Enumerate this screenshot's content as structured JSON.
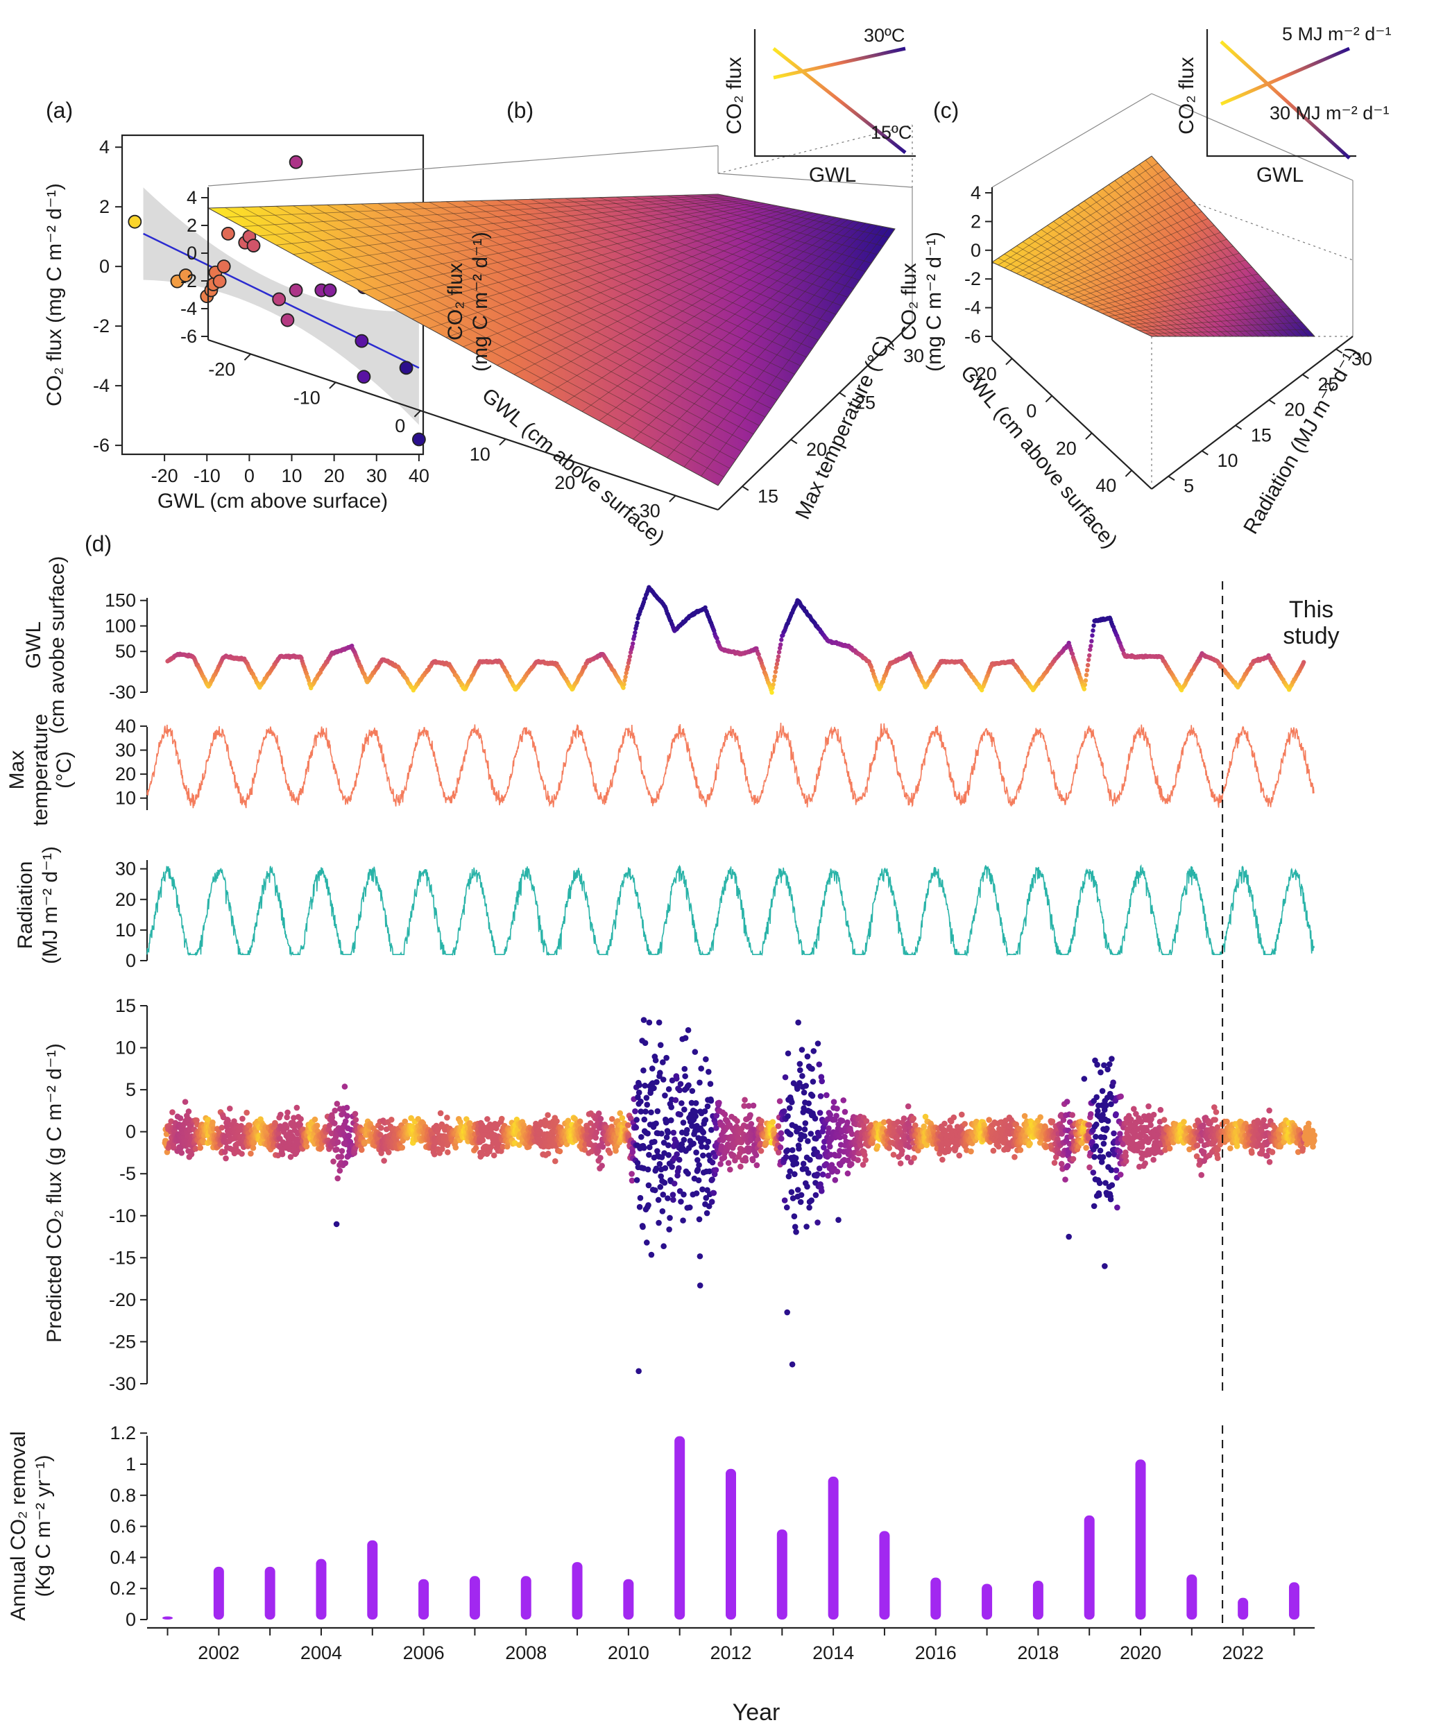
{
  "panel_labels": {
    "a": "(a)",
    "b": "(b)",
    "c": "(c)",
    "d": "(d)"
  },
  "panel_a": {
    "xlabel": "GWL (cm above surface)",
    "ylabel": "CO₂ flux (mg C m⁻² d⁻¹)",
    "xticks": [
      "-20",
      "-10",
      "0",
      "10",
      "20",
      "30",
      "40"
    ],
    "yticks": [
      "4",
      "2",
      "0",
      "-2",
      "-4",
      "-6"
    ]
  },
  "panel_b": {
    "zlabel_1": "CO₂ flux",
    "zlabel_2": "(mg C m⁻² d⁻¹)",
    "xlabel": "GWL (cm above surface)",
    "ylabel": "Max temperature (°C)",
    "zticks": [
      "4",
      "2",
      "0",
      "-2",
      "-4",
      "-6"
    ],
    "xticks": [
      "-20",
      "-10",
      "0",
      "10",
      "20",
      "30"
    ],
    "yticks": [
      "15",
      "20",
      "25",
      "30"
    ],
    "inset": {
      "ylabel": "CO₂ flux",
      "xlabel": "GWL",
      "line_high": "30ºC",
      "line_low": "15ºC"
    }
  },
  "panel_c": {
    "zlabel_1": "CO₂ flux",
    "zlabel_2": "(mg C m⁻² d⁻¹)",
    "xlabel": "GWL (cm above surface)",
    "ylabel": "Radiation (MJ m⁻² d⁻¹)",
    "zticks": [
      "4",
      "2",
      "0",
      "-2",
      "-4",
      "-6"
    ],
    "xticks": [
      "-20",
      "0",
      "20",
      "40"
    ],
    "yticks": [
      "5",
      "10",
      "15",
      "20",
      "25",
      "30"
    ],
    "inset": {
      "ylabel": "CO₂ flux",
      "xlabel": "GWL",
      "line_low_rad": "5 MJ m⁻² d⁻¹",
      "line_high_rad": "30 MJ m⁻² d⁻¹"
    }
  },
  "panel_d": {
    "gwl_label_1": "GWL",
    "gwl_label_2": "(cm avobe surface)",
    "gwl_ticks": [
      "150",
      "100",
      "50",
      "-30"
    ],
    "temp_label_1": "Max",
    "temp_label_2": "temperature",
    "temp_label_3": "(°C)",
    "temp_ticks": [
      "40",
      "30",
      "20",
      "10"
    ],
    "rad_label_1": "Radiation",
    "rad_label_2": "(MJ m⁻² d⁻¹)",
    "rad_ticks": [
      "30",
      "20",
      "10",
      "0"
    ],
    "flux_label": "Predicted CO₂ flux (g C m⁻² d⁻¹)",
    "flux_ticks": [
      "15",
      "10",
      "5",
      "0",
      "-5",
      "-10",
      "-15",
      "-20",
      "-25",
      "-30"
    ],
    "annual_label_1": "Annual CO₂ removal",
    "annual_label_2": "(Kg C m⁻² yr⁻¹)",
    "annual_ticks": [
      "1.2",
      "1",
      "0.8",
      "0.6",
      "0.4",
      "0.2",
      "0"
    ],
    "year_ticks": [
      "2002",
      "2004",
      "2006",
      "2008",
      "2010",
      "2012",
      "2014",
      "2016",
      "2018",
      "2020",
      "2022"
    ],
    "xlabel": "Year",
    "this_study_1": "This",
    "this_study_2": "study"
  },
  "colors": {
    "palette": [
      "#fde725",
      "#f5a541",
      "#e8744d",
      "#c94a72",
      "#9b2795",
      "#5c13a3",
      "#2a0f8c"
    ],
    "fit_line": "#2b2bd0",
    "temperature": "#f47c5c",
    "radiation": "#29b3a8",
    "annual_bar": "#a228f0"
  },
  "chart_data": [
    {
      "id": "a",
      "type": "scatter",
      "xlabel": "GWL (cm above surface)",
      "ylabel": "CO₂ flux (mg C m⁻² d⁻¹)",
      "xlim": [
        -30,
        41
      ],
      "ylim": [
        -6.3,
        4.4
      ],
      "points": [
        {
          "x": -27,
          "y": 1.5
        },
        {
          "x": -17,
          "y": -0.5
        },
        {
          "x": -15,
          "y": -0.3
        },
        {
          "x": -10,
          "y": -1.0
        },
        {
          "x": -9,
          "y": -0.8
        },
        {
          "x": -8.5,
          "y": -0.6
        },
        {
          "x": -8,
          "y": -0.2
        },
        {
          "x": -7,
          "y": -0.5
        },
        {
          "x": -6,
          "y": 0.0
        },
        {
          "x": -5,
          "y": 1.1
        },
        {
          "x": -1,
          "y": 0.8
        },
        {
          "x": -1,
          "y": 1.7
        },
        {
          "x": 0,
          "y": 1.0
        },
        {
          "x": 1,
          "y": 0.7
        },
        {
          "x": 7,
          "y": -1.1
        },
        {
          "x": 9,
          "y": -1.8
        },
        {
          "x": 11,
          "y": 3.5
        },
        {
          "x": 11,
          "y": -0.8
        },
        {
          "x": 17,
          "y": -0.8
        },
        {
          "x": 19,
          "y": -0.8
        },
        {
          "x": 26.5,
          "y": -2.5
        },
        {
          "x": 27,
          "y": -0.7
        },
        {
          "x": 27,
          "y": -3.7
        },
        {
          "x": 37,
          "y": -3.4
        },
        {
          "x": 40,
          "y": -5.8
        }
      ],
      "fit": {
        "x": [
          -25,
          40
        ],
        "y": [
          1.1,
          -3.4
        ]
      }
    },
    {
      "id": "b",
      "type": "surface",
      "x_range": [
        -25,
        30
      ],
      "y_range": [
        12,
        35
      ],
      "z_range": [
        -6.5,
        4
      ],
      "corners": {
        "xmin_ymin": 3.1,
        "xmin_ymax": 3.3,
        "xmax_ymax": 2.3,
        "xmax_ymin": -6.8
      },
      "inset": {
        "type": "line",
        "series": [
          {
            "name": "30ºC",
            "trend": "increasing"
          },
          {
            "name": "15ºC",
            "trend": "decreasing"
          }
        ]
      }
    },
    {
      "id": "c",
      "type": "surface",
      "x_range": [
        -25,
        40
      ],
      "y_range": [
        1,
        30
      ],
      "z_range": [
        -6.5,
        4.5
      ],
      "corners": {
        "xmin_ymin": 0.2,
        "xmin_ymax": 4.2,
        "xmax_ymax": -6.4,
        "xmax_ymin": -6.5
      },
      "inset": {
        "type": "line",
        "series": [
          {
            "name": "5 MJ m⁻² d⁻¹",
            "trend": "increasing"
          },
          {
            "name": "30 MJ m⁻² d⁻¹",
            "trend": "decreasing"
          }
        ]
      }
    },
    {
      "id": "d-gwl",
      "type": "scatter",
      "x_range": [
        2001,
        2023.5
      ],
      "ylim": [
        -30,
        185
      ],
      "series_points": [
        [
          2001.0,
          30
        ],
        [
          2001.2,
          45
        ],
        [
          2001.5,
          40
        ],
        [
          2001.8,
          -20
        ],
        [
          2002.1,
          40
        ],
        [
          2002.5,
          35
        ],
        [
          2002.8,
          -20
        ],
        [
          2003.2,
          40
        ],
        [
          2003.6,
          40
        ],
        [
          2003.8,
          -20
        ],
        [
          2004.2,
          45
        ],
        [
          2004.6,
          60
        ],
        [
          2004.9,
          -10
        ],
        [
          2005.2,
          35
        ],
        [
          2005.5,
          20
        ],
        [
          2005.8,
          -25
        ],
        [
          2006.2,
          30
        ],
        [
          2006.5,
          25
        ],
        [
          2006.8,
          -25
        ],
        [
          2007.1,
          30
        ],
        [
          2007.5,
          30
        ],
        [
          2007.8,
          -25
        ],
        [
          2008.2,
          30
        ],
        [
          2008.6,
          25
        ],
        [
          2008.9,
          -25
        ],
        [
          2009.2,
          30
        ],
        [
          2009.5,
          45
        ],
        [
          2009.9,
          -20
        ],
        [
          2010.2,
          120
        ],
        [
          2010.4,
          175
        ],
        [
          2010.7,
          140
        ],
        [
          2010.9,
          90
        ],
        [
          2011.2,
          120
        ],
        [
          2011.5,
          135
        ],
        [
          2011.8,
          55
        ],
        [
          2012.2,
          45
        ],
        [
          2012.5,
          55
        ],
        [
          2012.8,
          -30
        ],
        [
          2013.0,
          80
        ],
        [
          2013.3,
          150
        ],
        [
          2013.6,
          110
        ],
        [
          2013.9,
          70
        ],
        [
          2014.3,
          60
        ],
        [
          2014.7,
          30
        ],
        [
          2014.9,
          -25
        ],
        [
          2015.1,
          25
        ],
        [
          2015.5,
          45
        ],
        [
          2015.8,
          -20
        ],
        [
          2016.1,
          30
        ],
        [
          2016.5,
          30
        ],
        [
          2016.9,
          -25
        ],
        [
          2017.1,
          25
        ],
        [
          2017.5,
          30
        ],
        [
          2017.9,
          -25
        ],
        [
          2018.3,
          30
        ],
        [
          2018.6,
          65
        ],
        [
          2018.9,
          -25
        ],
        [
          2019.1,
          110
        ],
        [
          2019.4,
          115
        ],
        [
          2019.7,
          40
        ],
        [
          2020.1,
          40
        ],
        [
          2020.4,
          40
        ],
        [
          2020.8,
          -25
        ],
        [
          2021.2,
          45
        ],
        [
          2021.5,
          30
        ],
        [
          2021.9,
          -20
        ],
        [
          2022.2,
          30
        ],
        [
          2022.5,
          40
        ],
        [
          2022.9,
          -25
        ],
        [
          2023.2,
          30
        ]
      ]
    },
    {
      "id": "d-temp",
      "type": "line",
      "x_range": [
        2001,
        2023.5
      ],
      "ylim": [
        5,
        42
      ],
      "seasonal": {
        "period_years": 1,
        "min": 9,
        "max": 38
      }
    },
    {
      "id": "d-rad",
      "type": "line",
      "x_range": [
        2001,
        2023.5
      ],
      "ylim": [
        0,
        34
      ],
      "seasonal": {
        "period_years": 1,
        "min": 2,
        "max": 31
      }
    },
    {
      "id": "d-flux",
      "type": "scatter",
      "x_range": [
        2001,
        2023.5
      ],
      "ylim": [
        -30,
        15
      ],
      "typical_range": [
        -6,
        3
      ],
      "extremes": [
        {
          "x": 2010.2,
          "y": -28.5
        },
        {
          "x": 2010.3,
          "y": 13.3
        },
        {
          "x": 2010.6,
          "y": 13.0
        },
        {
          "x": 2011.3,
          "y": 9.5
        },
        {
          "x": 2011.4,
          "y": -18.3
        },
        {
          "x": 2013.1,
          "y": -21.5
        },
        {
          "x": 2013.2,
          "y": -27.7
        },
        {
          "x": 2013.7,
          "y": 10.5
        },
        {
          "x": 2014.1,
          "y": -10.5
        },
        {
          "x": 2004.3,
          "y": -11.0
        },
        {
          "x": 2018.6,
          "y": -12.5
        },
        {
          "x": 2019.3,
          "y": -16.0
        },
        {
          "x": 2018.9,
          "y": 6.3
        }
      ]
    },
    {
      "id": "d-annual",
      "type": "bar",
      "xlabel": "Year",
      "ylabel": "Annual CO₂ removal (Kg C m⁻² yr⁻¹)",
      "ylim": [
        0,
        1.25
      ],
      "categories": [
        2001,
        2002,
        2003,
        2004,
        2005,
        2006,
        2007,
        2008,
        2009,
        2010,
        2011,
        2012,
        2013,
        2014,
        2015,
        2016,
        2017,
        2018,
        2019,
        2020,
        2021,
        2022,
        2023
      ],
      "values": [
        0.02,
        0.34,
        0.34,
        0.39,
        0.51,
        0.26,
        0.28,
        0.28,
        0.37,
        0.26,
        1.18,
        0.97,
        0.58,
        0.92,
        0.57,
        0.27,
        0.23,
        0.25,
        0.67,
        1.03,
        0.29,
        0.14,
        0.24
      ],
      "this_study_start": 2021.6
    }
  ]
}
